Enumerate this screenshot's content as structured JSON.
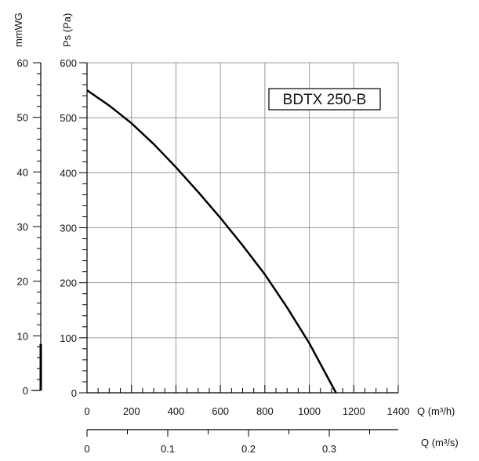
{
  "chart_data": {
    "type": "line",
    "model_label": "BDTX 250-B",
    "x_unit": "Q (m³/h)",
    "x2_unit": "Q (m³/s)",
    "y_unit": "Ps (Pa)",
    "y2_unit": "mmWG",
    "xlim": [
      0,
      1400
    ],
    "ylim": [
      0,
      600
    ],
    "x_ticks": [
      "0",
      "200",
      "400",
      "600",
      "800",
      "1000",
      "1200",
      "1400"
    ],
    "y_ticks": [
      "0",
      "100",
      "200",
      "300",
      "400",
      "500",
      "600"
    ],
    "y2_ticks": [
      "0",
      "10",
      "20",
      "30",
      "40",
      "50",
      "60"
    ],
    "x2_ticks": [
      "0",
      "0.1",
      "0.2",
      "0.3"
    ],
    "grid": true,
    "series": [
      {
        "x": [
          0,
          100,
          200,
          300,
          400,
          500,
          600,
          700,
          800,
          900,
          1000,
          1100,
          1120
        ],
        "y": [
          550,
          522,
          490,
          452,
          410,
          365,
          318,
          268,
          215,
          155,
          90,
          15,
          0
        ]
      }
    ]
  }
}
